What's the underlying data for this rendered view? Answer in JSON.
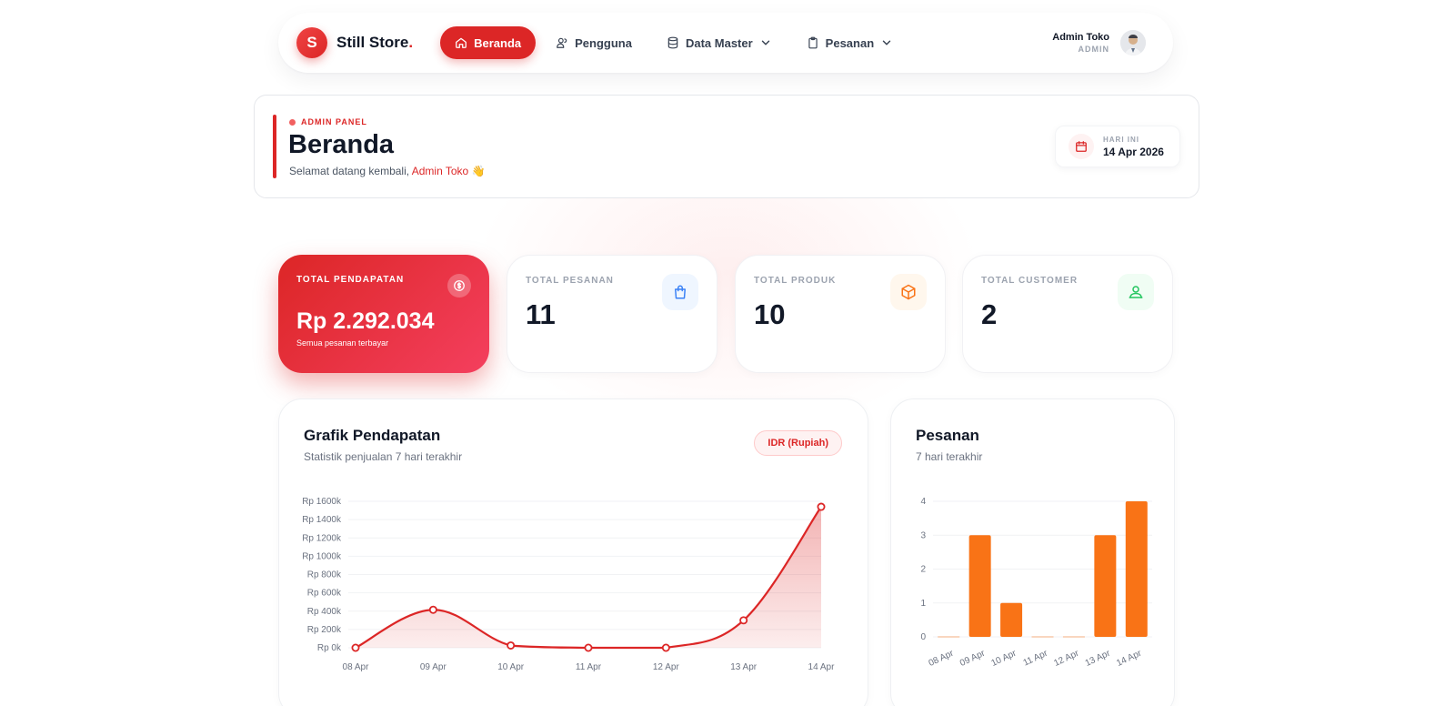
{
  "nav": {
    "brand_initial": "S",
    "brand_name": "Still Store",
    "brand_dot": ".",
    "items": [
      {
        "label": "Beranda",
        "icon": "home-icon",
        "active": true
      },
      {
        "label": "Pengguna",
        "icon": "users-icon"
      },
      {
        "label": "Data Master",
        "icon": "database-icon",
        "dropdown": true
      },
      {
        "label": "Pesanan",
        "icon": "clipboard-icon",
        "dropdown": true
      }
    ],
    "user_name": "Admin Toko",
    "user_role": "ADMIN"
  },
  "header": {
    "panel_label": "ADMIN PANEL",
    "title": "Beranda",
    "welcome_prefix": "Selamat datang kembali,",
    "welcome_name": "Admin Toko",
    "welcome_emoji": "👋",
    "date_label": "HARI INI",
    "date_value": "14 Apr 2026"
  },
  "stats": [
    {
      "label": "TOTAL PENDAPATAN",
      "value": "Rp 2.292.034",
      "sub": "Semua pesanan terbayar",
      "icon": "dollar-icon"
    },
    {
      "label": "TOTAL PESANAN",
      "value": "11",
      "icon": "shopping-bag-icon",
      "color": "#3b82f6"
    },
    {
      "label": "TOTAL PRODUK",
      "value": "10",
      "icon": "box-icon",
      "color": "#f97316"
    },
    {
      "label": "TOTAL CUSTOMER",
      "value": "2",
      "icon": "user-icon",
      "color": "#22c55e"
    }
  ],
  "colors": {
    "accent": "#dc2626",
    "bar": "#f97316"
  },
  "chart_data": [
    {
      "type": "area",
      "title": "Grafik Pendapatan",
      "subtitle": "Statistik penjualan 7 hari terakhir",
      "badge": "IDR (Rupiah)",
      "categories": [
        "08 Apr",
        "09 Apr",
        "10 Apr",
        "11 Apr",
        "12 Apr",
        "13 Apr",
        "14 Apr"
      ],
      "values": [
        0,
        415000,
        25000,
        0,
        0,
        300000,
        1540000
      ],
      "ylim": [
        0,
        1600000
      ],
      "yticks": [
        "Rp 0k",
        "Rp 200k",
        "Rp 400k",
        "Rp 600k",
        "Rp 800k",
        "Rp 1000k",
        "Rp 1200k",
        "Rp 1400k",
        "Rp 1600k"
      ],
      "grid": true,
      "color": "#dc2626"
    },
    {
      "type": "bar",
      "title": "Pesanan",
      "subtitle": "7 hari terakhir",
      "categories": [
        "08 Apr",
        "09 Apr",
        "10 Apr",
        "11 Apr",
        "12 Apr",
        "13 Apr",
        "14 Apr"
      ],
      "values": [
        0,
        3,
        1,
        0,
        0,
        3,
        4
      ],
      "ylim": [
        0,
        4
      ],
      "yticks": [
        "0",
        "1",
        "2",
        "3",
        "4"
      ],
      "grid": true,
      "color": "#f97316"
    }
  ]
}
